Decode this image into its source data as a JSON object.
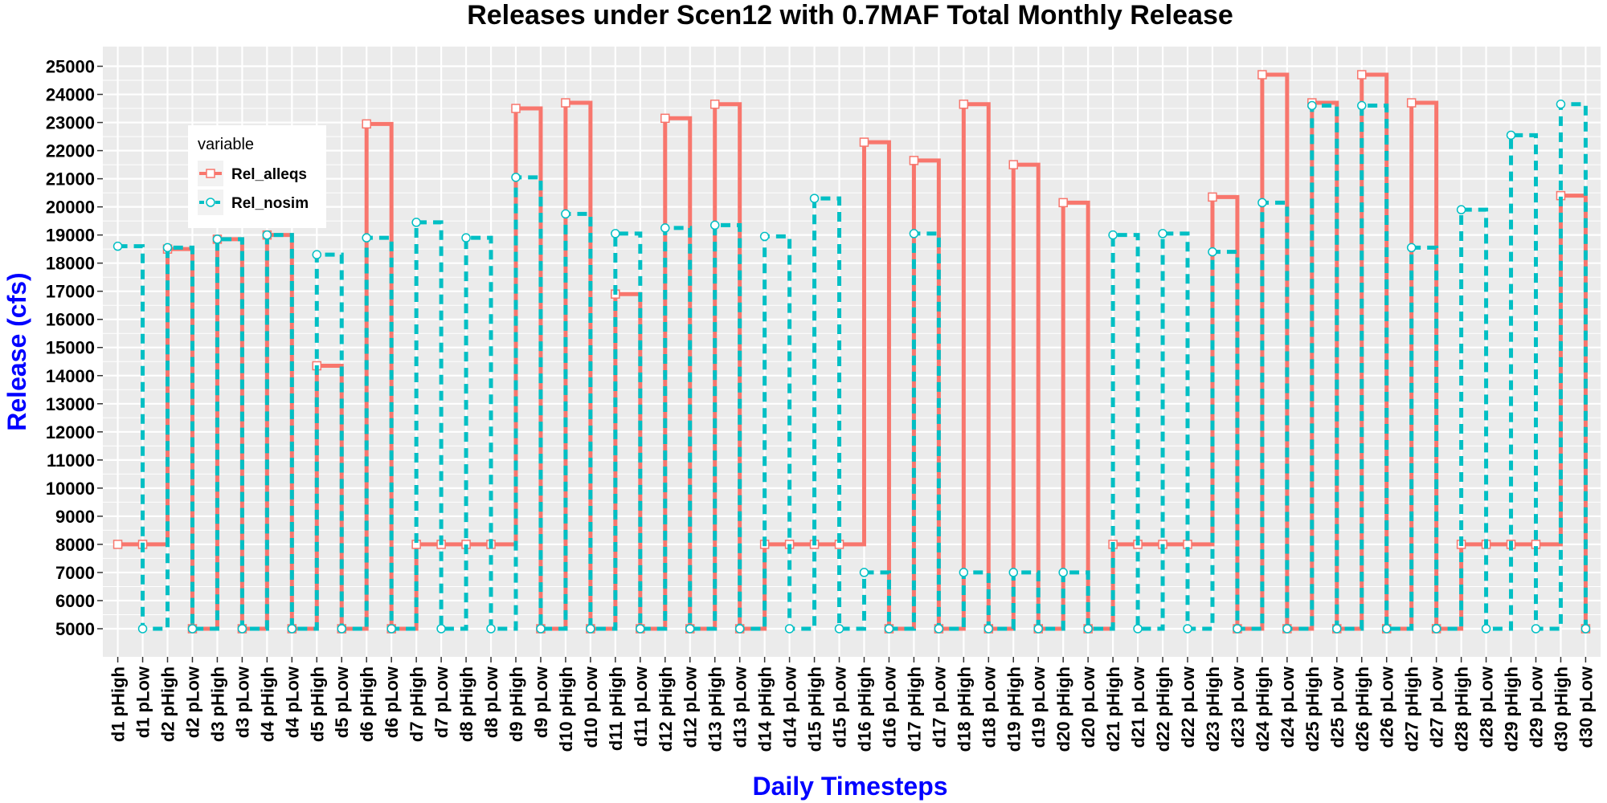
{
  "chart_data": {
    "type": "line",
    "step": true,
    "title": "Releases under Scen12 with 0.7MAF Total Monthly Release",
    "xlabel": "Daily Timesteps",
    "ylabel": "Release (cfs)",
    "ylim": [
      4000,
      25700
    ],
    "yticks": [
      5000,
      6000,
      7000,
      8000,
      9000,
      10000,
      11000,
      12000,
      13000,
      14000,
      15000,
      16000,
      17000,
      18000,
      19000,
      20000,
      21000,
      22000,
      23000,
      24000,
      25000
    ],
    "grid": true,
    "legend": {
      "title": "variable",
      "position": "top-left"
    },
    "categories": [
      "d1 pHigh",
      "d1 pLow",
      "d2 pHigh",
      "d2 pLow",
      "d3 pHigh",
      "d3 pLow",
      "d4 pHigh",
      "d4 pLow",
      "d5 pHigh",
      "d5 pLow",
      "d6 pHigh",
      "d6 pLow",
      "d7 pHigh",
      "d7 pLow",
      "d8 pHigh",
      "d8 pLow",
      "d9 pHigh",
      "d9 pLow",
      "d10 pHigh",
      "d10 pLow",
      "d11 pHigh",
      "d11 pLow",
      "d12 pHigh",
      "d12 pLow",
      "d13 pHigh",
      "d13 pLow",
      "d14 pHigh",
      "d14 pLow",
      "d15 pHigh",
      "d15 pLow",
      "d16 pHigh",
      "d16 pLow",
      "d17 pHigh",
      "d17 pLow",
      "d18 pHigh",
      "d18 pLow",
      "d19 pHigh",
      "d19 pLow",
      "d20 pHigh",
      "d20 pLow",
      "d21 pHigh",
      "d21 pLow",
      "d22 pHigh",
      "d22 pLow",
      "d23 pHigh",
      "d23 pLow",
      "d24 pHigh",
      "d24 pLow",
      "d25 pHigh",
      "d25 pLow",
      "d26 pHigh",
      "d26 pLow",
      "d27 pHigh",
      "d27 pLow",
      "d28 pHigh",
      "d28 pLow",
      "d29 pHigh",
      "d29 pLow",
      "d30 pHigh",
      "d30 pLow"
    ],
    "series": [
      {
        "name": "Rel_alleqs",
        "color": "#F8766D",
        "linetype": "solid",
        "marker": "square",
        "values": [
          8000,
          8000,
          18500,
          5000,
          18850,
          5000,
          19000,
          5000,
          14350,
          5000,
          22950,
          5000,
          8000,
          8000,
          8000,
          8000,
          23500,
          5000,
          23700,
          5000,
          16900,
          5000,
          23150,
          5000,
          23650,
          5000,
          8000,
          8000,
          8000,
          8000,
          22300,
          5000,
          21650,
          5000,
          23650,
          5000,
          21500,
          5000,
          20150,
          5000,
          8000,
          8000,
          8000,
          8000,
          20350,
          5000,
          24700,
          5000,
          23700,
          5000,
          24700,
          5000,
          23700,
          5000,
          8000,
          8000,
          8000,
          8000,
          20400,
          5000
        ]
      },
      {
        "name": "Rel_nosim",
        "color": "#00BFC4",
        "linetype": "dashed",
        "marker": "circle",
        "values": [
          18600,
          5000,
          18550,
          5000,
          18850,
          5000,
          19000,
          5000,
          18300,
          5000,
          18900,
          5000,
          19450,
          5000,
          18900,
          5000,
          21050,
          5000,
          19750,
          5000,
          19050,
          5000,
          19250,
          5000,
          19350,
          5000,
          18950,
          5000,
          20300,
          5000,
          7000,
          5000,
          19050,
          5000,
          7000,
          5000,
          7000,
          5000,
          7000,
          5000,
          19000,
          5000,
          19050,
          5000,
          18400,
          5000,
          20150,
          5000,
          23600,
          5000,
          23600,
          5000,
          18550,
          5000,
          19900,
          5000,
          22550,
          5000,
          23650,
          5000
        ]
      }
    ]
  }
}
